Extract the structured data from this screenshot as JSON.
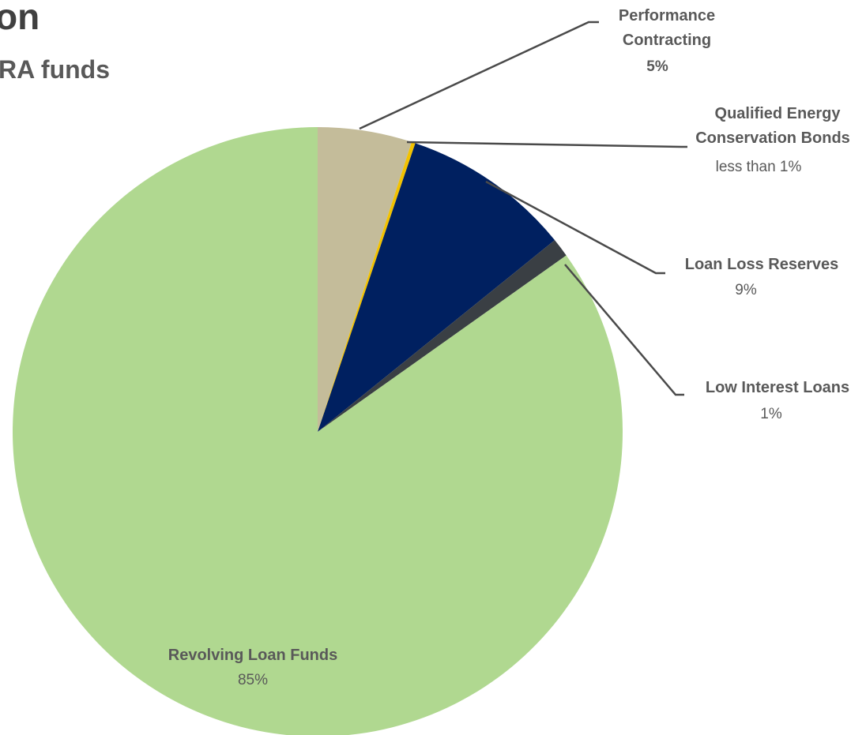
{
  "header": {
    "title_fragment": "on",
    "subtitle_fragment": "RA funds"
  },
  "chart_data": {
    "type": "pie",
    "slices": [
      {
        "label": "Performance Contracting",
        "value": 5,
        "value_label": "5%",
        "color": "#c4bc9a"
      },
      {
        "label": "Qualified Energy Conservation Bonds",
        "value": 0.2,
        "value_label": "less than 1%",
        "color": "#f2c200"
      },
      {
        "label": "Loan Loss Reserves",
        "value": 9,
        "value_label": "9%",
        "color": "#002060"
      },
      {
        "label": "Low Interest Loans",
        "value": 1,
        "value_label": "1%",
        "color": "#3a3f44"
      },
      {
        "label": "Revolving Loan Funds",
        "value": 85,
        "value_label": "85%",
        "color": "#b0d890"
      }
    ],
    "start_angle_deg": 0,
    "direction": "clockwise"
  }
}
